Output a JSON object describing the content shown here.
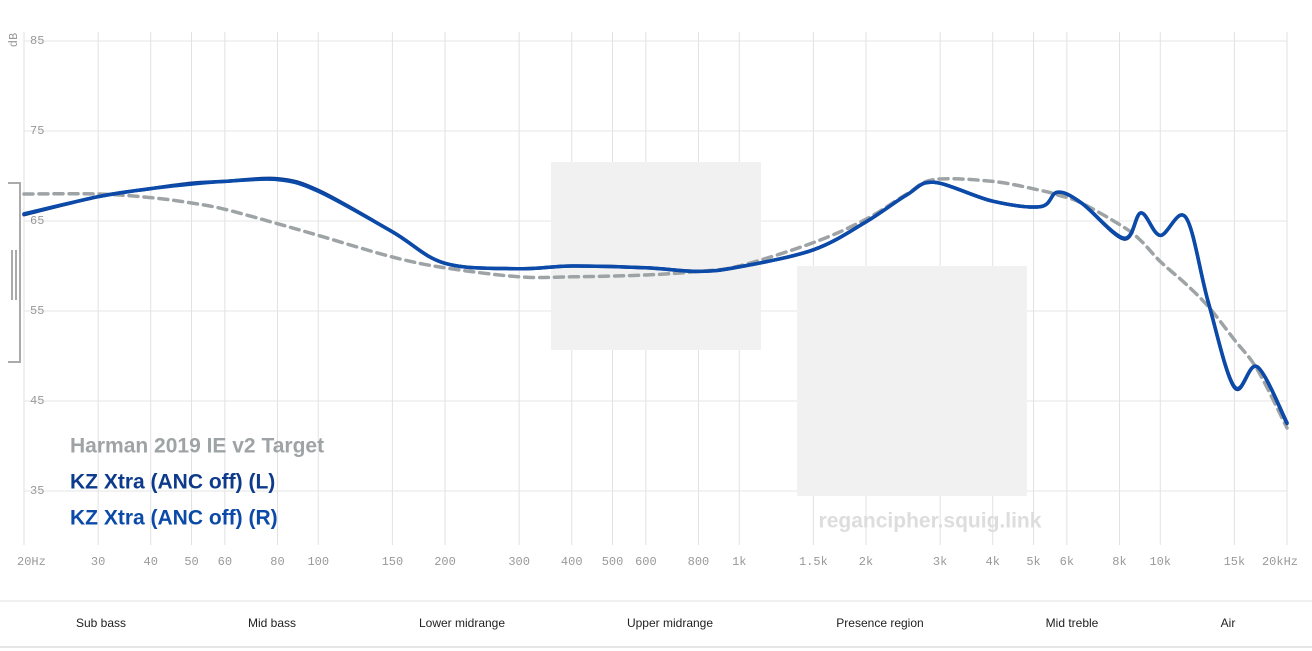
{
  "chart_data": {
    "type": "line",
    "y_label": "dB",
    "watermark": "regancipher.squig.link",
    "xscale": "log",
    "grid": true,
    "legend": "bottom-left",
    "xlim": [
      20,
      20000
    ],
    "ylim": [
      29,
      86
    ],
    "xticks": [
      {
        "value": 20,
        "label": "20Hz"
      },
      30,
      40,
      50,
      60,
      80,
      100,
      150,
      200,
      300,
      400,
      500,
      600,
      800,
      {
        "value": 1000,
        "label": "1k"
      },
      {
        "value": 1500,
        "label": "1.5k"
      },
      {
        "value": 2000,
        "label": "2k"
      },
      {
        "value": 3000,
        "label": "3k"
      },
      {
        "value": 4000,
        "label": "4k"
      },
      {
        "value": 5000,
        "label": "5k"
      },
      {
        "value": 6000,
        "label": "6k"
      },
      {
        "value": 8000,
        "label": "8k"
      },
      {
        "value": 10000,
        "label": "10k"
      },
      {
        "value": 15000,
        "label": "15k"
      },
      {
        "value": 20000,
        "label": "20kHz"
      }
    ],
    "yticks": [
      35,
      45,
      55,
      65,
      75,
      85
    ],
    "x": [
      20,
      30,
      40,
      50,
      60,
      80,
      100,
      150,
      200,
      300,
      400,
      600,
      800,
      1000,
      1500,
      2000,
      2500,
      2900,
      4000,
      5200,
      5700,
      6500,
      8200,
      9000,
      10000,
      11500,
      13000,
      15000,
      17000,
      20000
    ],
    "series": [
      {
        "name": "Harman 2019 IE v2 Target",
        "color": "#9ea3a5",
        "dashed": true,
        "values": [
          68.0,
          68.0,
          67.6,
          67.0,
          66.3,
          64.7,
          63.4,
          61.0,
          59.8,
          58.8,
          58.8,
          59.0,
          59.4,
          60.0,
          62.6,
          65.2,
          68.0,
          69.6,
          69.4,
          68.4,
          67.9,
          67.0,
          64.3,
          62.8,
          60.5,
          58.0,
          55.5,
          51.8,
          48.5,
          42.0
        ]
      },
      {
        "name": "KZ Xtra (ANC off) (L)",
        "color": "#0d3a8a",
        "values": [
          65.7,
          67.7,
          68.6,
          69.2,
          69.4,
          69.7,
          68.4,
          63.8,
          60.3,
          59.7,
          60.0,
          59.8,
          59.4,
          59.9,
          61.8,
          64.9,
          67.9,
          69.3,
          67.2,
          66.6,
          68.2,
          67.0,
          63.0,
          65.9,
          63.4,
          65.4,
          56.0,
          46.5,
          48.8,
          42.5
        ]
      },
      {
        "name": "KZ Xtra (ANC off) (R)",
        "color": "#0b4aa8",
        "values": [
          65.8,
          67.7,
          68.6,
          69.1,
          69.4,
          69.6,
          68.3,
          63.8,
          60.3,
          59.7,
          60.0,
          59.8,
          59.4,
          59.9,
          61.8,
          64.9,
          67.9,
          69.3,
          67.2,
          66.6,
          68.2,
          67.0,
          63.1,
          65.9,
          63.4,
          65.4,
          56.0,
          46.6,
          48.8,
          42.6
        ]
      }
    ],
    "bands": [
      "Sub bass",
      "Mid bass",
      "Lower midrange",
      "Upper midrange",
      "Presence region",
      "Mid treble",
      "Air"
    ]
  }
}
